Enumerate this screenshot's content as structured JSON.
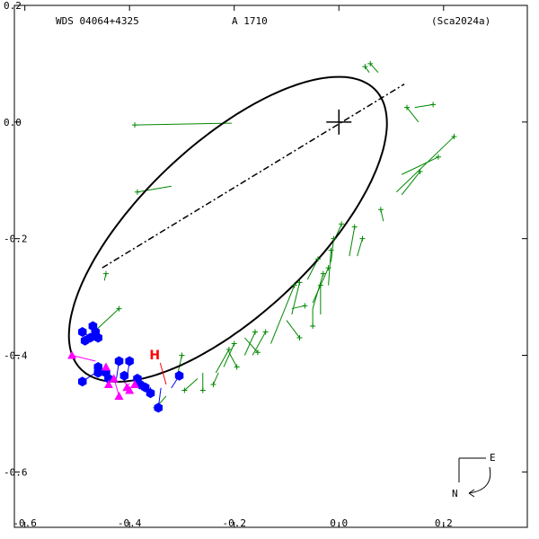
{
  "header": {
    "left": "WDS 04064+4325",
    "center": "A  1710",
    "right": "(Sca2024a)"
  },
  "chart_data": {
    "type": "scatter",
    "title": "",
    "xlabel": "",
    "ylabel": "",
    "xlim": [
      -0.62,
      0.36
    ],
    "ylim": [
      -0.695,
      0.2
    ],
    "x_ticks": [
      -0.6,
      -0.4,
      -0.2,
      0.0,
      0.2
    ],
    "x_tick_labels": [
      "-0.6",
      "-0.4",
      "-0.2",
      "0.0",
      "0.2"
    ],
    "y_ticks": [
      0.2,
      0.0,
      -0.2,
      -0.4,
      -0.6
    ],
    "y_tick_labels": [
      "0.2",
      "0.0",
      "-0.2",
      "-0.4",
      "-0.6"
    ],
    "primary": [
      0.0,
      0.0
    ],
    "orbit": {
      "center": [
        -0.212,
        -0.184
      ],
      "semi_major": 0.37,
      "semi_minor": 0.154,
      "angle_deg": 38.9,
      "color": "#000000"
    },
    "line_of_apsides": {
      "from": [
        -0.452,
        -0.25
      ],
      "to": [
        0.125,
        0.065
      ]
    },
    "series": [
      {
        "marker": "plus",
        "color": "#008800",
        "points": [
          [
            -0.39,
            -0.005,
            -0.205,
            -0.002
          ],
          [
            -0.385,
            -0.12,
            -0.32,
            -0.11
          ],
          [
            -0.42,
            -0.32,
            -0.462,
            -0.355
          ],
          [
            -0.445,
            -0.26,
            -0.448,
            -0.272
          ],
          [
            0.06,
            0.1,
            0.075,
            0.085
          ],
          [
            0.05,
            0.095,
            0.058,
            0.085
          ],
          [
            0.13,
            0.025,
            0.152,
            0.0
          ],
          [
            0.18,
            0.03,
            0.145,
            0.025
          ],
          [
            0.19,
            -0.06,
            0.12,
            -0.09
          ],
          [
            0.22,
            -0.025,
            0.11,
            -0.12
          ],
          [
            0.155,
            -0.085,
            0.12,
            -0.125
          ],
          [
            0.08,
            -0.15,
            0.085,
            -0.17
          ],
          [
            0.03,
            -0.18,
            0.02,
            -0.23
          ],
          [
            0.045,
            -0.2,
            0.035,
            -0.23
          ],
          [
            0.005,
            -0.175,
            -0.01,
            -0.205
          ],
          [
            -0.01,
            -0.2,
            -0.015,
            -0.24
          ],
          [
            -0.015,
            -0.22,
            -0.02,
            -0.28
          ],
          [
            -0.02,
            -0.25,
            -0.05,
            -0.31
          ],
          [
            -0.04,
            -0.235,
            -0.06,
            -0.27
          ],
          [
            -0.03,
            -0.26,
            -0.05,
            -0.32
          ],
          [
            -0.035,
            -0.28,
            -0.035,
            -0.33
          ],
          [
            -0.075,
            -0.275,
            -0.09,
            -0.33
          ],
          [
            -0.05,
            -0.35,
            -0.05,
            -0.32
          ],
          [
            -0.065,
            -0.315,
            -0.09,
            -0.32
          ],
          [
            -0.085,
            -0.28,
            -0.13,
            -0.38
          ],
          [
            -0.075,
            -0.37,
            -0.1,
            -0.34
          ],
          [
            -0.16,
            -0.36,
            -0.18,
            -0.4
          ],
          [
            -0.155,
            -0.395,
            -0.18,
            -0.37
          ],
          [
            -0.14,
            -0.36,
            -0.165,
            -0.4
          ],
          [
            -0.2,
            -0.38,
            -0.22,
            -0.42
          ],
          [
            -0.21,
            -0.39,
            -0.235,
            -0.43
          ],
          [
            -0.195,
            -0.42,
            -0.21,
            -0.395
          ],
          [
            -0.24,
            -0.45,
            -0.23,
            -0.43
          ],
          [
            -0.26,
            -0.46,
            -0.26,
            -0.43
          ],
          [
            -0.3,
            -0.4,
            -0.31,
            -0.44
          ],
          [
            -0.295,
            -0.46,
            -0.27,
            -0.44
          ],
          [
            -0.35,
            -0.49,
            -0.33,
            -0.47
          ]
        ]
      },
      {
        "marker": "hexagon",
        "color": "#0000ff",
        "points": [
          [
            -0.49,
            -0.36,
            -0.478,
            -0.368
          ],
          [
            -0.475,
            -0.37,
            -0.47,
            -0.372
          ],
          [
            -0.485,
            -0.375,
            -0.472,
            -0.373
          ],
          [
            -0.465,
            -0.36,
            -0.47,
            -0.37
          ],
          [
            -0.47,
            -0.35,
            -0.472,
            -0.365
          ],
          [
            -0.46,
            -0.37,
            -0.465,
            -0.372
          ],
          [
            -0.49,
            -0.445,
            -0.465,
            -0.43
          ],
          [
            -0.46,
            -0.42,
            -0.458,
            -0.43
          ],
          [
            -0.46,
            -0.43,
            -0.455,
            -0.432
          ],
          [
            -0.445,
            -0.43,
            -0.45,
            -0.435
          ],
          [
            -0.44,
            -0.44,
            -0.44,
            -0.436
          ],
          [
            -0.42,
            -0.41,
            -0.425,
            -0.44
          ],
          [
            -0.4,
            -0.41,
            -0.405,
            -0.44
          ],
          [
            -0.41,
            -0.435,
            -0.41,
            -0.44
          ],
          [
            -0.385,
            -0.44,
            -0.392,
            -0.448
          ],
          [
            -0.38,
            -0.45,
            -0.382,
            -0.45
          ],
          [
            -0.37,
            -0.455,
            -0.37,
            -0.452
          ],
          [
            -0.36,
            -0.465,
            -0.36,
            -0.455
          ],
          [
            -0.345,
            -0.49,
            -0.34,
            -0.456
          ],
          [
            -0.305,
            -0.435,
            -0.32,
            -0.456
          ]
        ]
      },
      {
        "marker": "triangle",
        "color": "#ff00ff",
        "points": [
          [
            -0.51,
            -0.4,
            -0.465,
            -0.41
          ],
          [
            -0.445,
            -0.42,
            -0.445,
            -0.438
          ],
          [
            -0.43,
            -0.44,
            -0.44,
            -0.438
          ],
          [
            -0.44,
            -0.45,
            -0.436,
            -0.44
          ],
          [
            -0.42,
            -0.47,
            -0.428,
            -0.445
          ],
          [
            -0.4,
            -0.46,
            -0.41,
            -0.445
          ],
          [
            -0.405,
            -0.455,
            -0.4,
            -0.448
          ],
          [
            -0.39,
            -0.45,
            -0.392,
            -0.449
          ]
        ]
      }
    ],
    "hipparcos": {
      "label": "H",
      "point": [
        -0.33,
        -0.45
      ],
      "label_at": [
        -0.35,
        -0.41
      ],
      "color": "#ff0000"
    },
    "compass": {
      "north": "N",
      "east": "E"
    }
  }
}
